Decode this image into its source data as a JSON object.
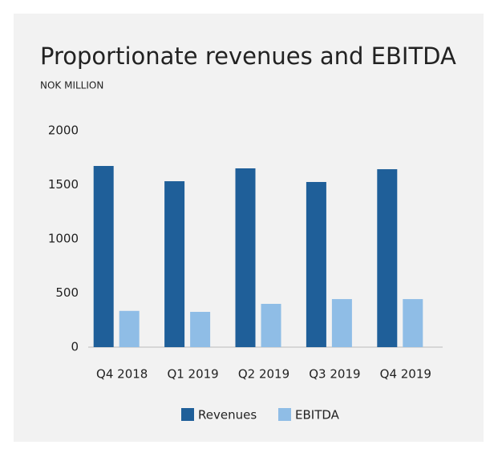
{
  "chart_data": {
    "type": "bar",
    "title": "Proportionate revenues and EBITDA",
    "subtitle": "NOK MILLION",
    "categories": [
      "Q4 2018",
      "Q1 2019",
      "Q2 2019",
      "Q3 2019",
      "Q4 2019"
    ],
    "series": [
      {
        "name": "Revenues",
        "color": "#1f5f99",
        "values": [
          1674,
          1533,
          1652,
          1526,
          1644
        ]
      },
      {
        "name": "EBITDA",
        "color": "#8fbde6",
        "values": [
          335,
          326,
          400,
          444,
          444
        ]
      }
    ],
    "ylim": [
      0,
      2000
    ],
    "yticks": [
      0,
      500,
      1000,
      1500,
      2000
    ],
    "grid": false,
    "legend": "bottom"
  }
}
